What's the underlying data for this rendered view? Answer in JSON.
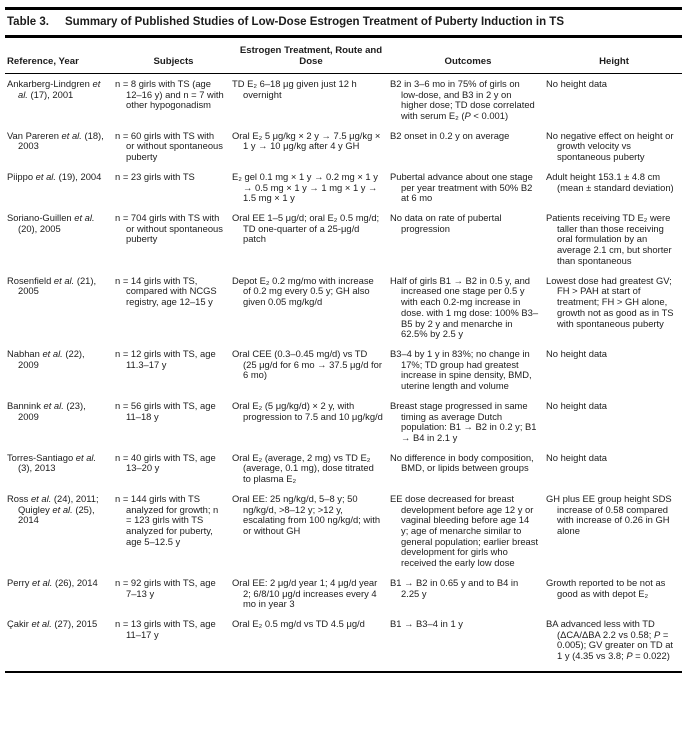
{
  "page": {
    "background": "#ffffff",
    "text_color": "#1c1c1c",
    "rule_color": "#000000"
  },
  "table": {
    "label": "Table 3.",
    "title": "Summary of Published Studies of Low-Dose Estrogen Treatment of Puberty Induction in TS",
    "columns": [
      "Reference, Year",
      "Subjects",
      "Estrogen Treatment, Route and Dose",
      "Outcomes",
      "Height"
    ],
    "rows": [
      {
        "reference": "Ankarberg-Lindgren et al. (17), 2001",
        "subjects": "n = 8 girls with TS (age 12–16 y) and n = 7 with other hypogonadism",
        "treatment": "TD E₂ 6–18 μg given just 12 h overnight",
        "outcomes": "B2 in 3–6 mo in 75% of girls on low-dose, and B3 in 2 y on higher dose; TD dose correlated with serum E₂ (P < 0.001)",
        "height": "No height data"
      },
      {
        "reference": "Van Pareren et al. (18), 2003",
        "subjects": "n = 60 girls with TS with or without spontaneous puberty",
        "treatment": "Oral E₂ 5 μg/kg × 2 y → 7.5 μg/kg × 1 y → 10 μg/kg after 4 y GH",
        "outcomes": "B2 onset in 0.2 y on average",
        "height": "No negative effect on height or growth velocity vs spontaneous puberty"
      },
      {
        "reference": "Piippo et al. (19), 2004",
        "subjects": "n = 23 girls with TS",
        "treatment": "E₂ gel 0.1 mg × 1 y → 0.2 mg × 1 y → 0.5 mg × 1 y → 1 mg × 1 y → 1.5 mg × 1 y",
        "outcomes": "Pubertal advance about one stage per year treatment with 50% B2 at 6 mo",
        "height": "Adult height 153.1 ± 4.8 cm (mean ± standard deviation)"
      },
      {
        "reference": "Soriano-Guillen et al. (20), 2005",
        "subjects": "n = 704 girls with TS with or without spontaneous puberty",
        "treatment": "Oral EE 1–5 μg/d; oral E₂ 0.5 mg/d; TD one-quarter of a 25-μg/d patch",
        "outcomes": "No data on rate of pubertal progression",
        "height": "Patients receiving TD E₂ were taller than those receiving oral formulation by an average 2.1 cm, but shorter than spontaneous"
      },
      {
        "reference": "Rosenfield et al. (21), 2005",
        "subjects": "n = 14 girls with TS, compared with NCGS registry, age 12–15 y",
        "treatment": "Depot E₂ 0.2 mg/mo with increase of 0.2 mg every 0.5 y; GH also given 0.05 mg/kg/d",
        "outcomes": "Half of girls B1 → B2 in 0.5 y, and increased one stage per 0.5 y with each 0.2-mg increase in dose. with 1 mg dose: 100% B3–B5 by 2 y and menarche in 62.5% by 2.5 y",
        "height": "Lowest dose had greatest GV; FH > PAH at start of treatment; FH > GH alone, growth not as good as in TS with spontaneous puberty"
      },
      {
        "reference": "Nabhan et al. (22), 2009",
        "subjects": "n = 12 girls with TS, age 11.3–17 y",
        "treatment": "Oral CEE (0.3–0.45 mg/d) vs TD (25 μg/d for 6 mo → 37.5 μg/d for 6 mo)",
        "outcomes": "B3–4 by 1 y in 83%; no change in 17%; TD group had greatest increase in spine density, BMD, uterine length and volume",
        "height": "No height data"
      },
      {
        "reference": "Bannink et al. (23), 2009",
        "subjects": "n = 56 girls with TS, age 11–18 y",
        "treatment": "Oral E₂ (5 μg/kg/d) × 2 y, with progression to 7.5 and 10 μg/kg/d",
        "outcomes": "Breast stage progressed in same timing as average Dutch population: B1 → B2 in 0.2 y; B1 → B4 in 2.1 y",
        "height": "No height data"
      },
      {
        "reference": "Torres-Santiago et al. (3), 2013",
        "subjects": "n = 40 girls with TS, age 13–20 y",
        "treatment": "Oral E₂ (average, 2 mg) vs TD E₂ (average, 0.1 mg), dose titrated to plasma E₂",
        "outcomes": "No difference in body composition, BMD, or lipids between groups",
        "height": "No height data"
      },
      {
        "reference": "Ross et al. (24), 2011; Quigley et al. (25), 2014",
        "subjects": "n = 144 girls with TS analyzed for growth; n = 123 girls with TS analyzed for puberty, age 5–12.5 y",
        "treatment": "Oral EE: 25 ng/kg/d, 5–8 y; 50 ng/kg/d, >8–12 y; >12 y, escalating from 100 ng/kg/d; with or without GH",
        "outcomes": "EE dose decreased for breast development before age 12 y or vaginal bleeding before age 14 y; age of menarche similar to general population; earlier breast development for girls who received the early low dose",
        "height": "GH plus EE group height SDS increase of 0.58 compared with increase of 0.26 in GH alone"
      },
      {
        "reference": "Perry et al. (26), 2014",
        "subjects": "n = 92 girls with TS, age 7–13 y",
        "treatment": "Oral EE: 2 μg/d year 1; 4 μg/d year 2; 6/8/10 μg/d increases every 4 mo in year 3",
        "outcomes": "B1 → B2 in 0.65 y and to B4 in 2.25 y",
        "height": "Growth reported to be not as good as with depot E₂"
      },
      {
        "reference": "Çakir et al. (27), 2015",
        "subjects": "n = 13 girls with TS, age 11–17 y",
        "treatment": "Oral E₂ 0.5 mg/d vs TD 4.5 μg/d",
        "outcomes": "B1 → B3–4 in 1 y",
        "height": "BA advanced less with TD (ΔCA/ΔBA 2.2 vs 0.58; P = 0.005); GV greater on TD at 1 y (4.35 vs 3.8; P = 0.022)"
      }
    ]
  }
}
